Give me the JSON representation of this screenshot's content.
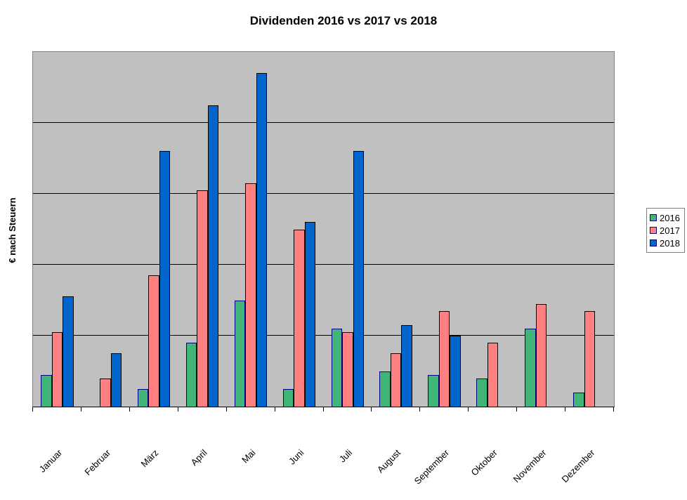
{
  "chart_data": {
    "type": "bar",
    "title": "Dividenden 2016 vs 2017 vs 2018",
    "xlabel": "",
    "ylabel": "€ nach Steuern",
    "categories": [
      "Januar",
      "Februar",
      "März",
      "April",
      "Mai",
      "Juni",
      "Juli",
      "August",
      "September",
      "Oktober",
      "November",
      "Dezember"
    ],
    "series": [
      {
        "name": "2016",
        "color": "#41B478",
        "border_color": "#000080",
        "values": [
          0.45,
          0,
          0.25,
          0.9,
          1.5,
          0.25,
          1.1,
          0.5,
          0.45,
          0.4,
          1.1,
          0.2
        ]
      },
      {
        "name": "2017",
        "color": "#FF8080",
        "border_color": "#000000",
        "values": [
          1.05,
          0.4,
          1.85,
          3.05,
          3.15,
          2.5,
          1.05,
          0.75,
          1.35,
          0.9,
          1.45,
          1.35
        ]
      },
      {
        "name": "2018",
        "color": "#0066CC",
        "border_color": "#000000",
        "values": [
          1.55,
          0.75,
          3.6,
          4.25,
          4.7,
          2.6,
          3.6,
          1.15,
          1.0,
          0,
          0,
          0
        ]
      }
    ],
    "ylim": [
      0,
      5
    ],
    "gridline_step": 1,
    "y_tick_labels_visible": false,
    "grid": true,
    "legend_position": "right",
    "plot_background": "#C0C0C0",
    "gridline_color": "#000000",
    "plot_border_color": "#808080"
  }
}
